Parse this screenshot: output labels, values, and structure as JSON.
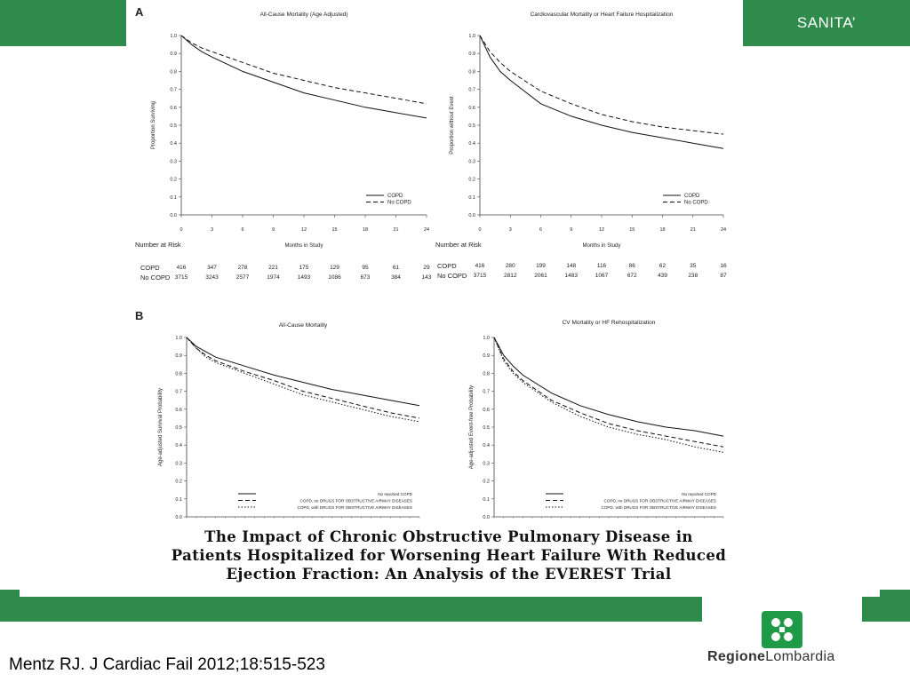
{
  "header": {
    "brand_label": "SANITA’"
  },
  "footer": {
    "citation": "Mentz RJ. J Cardiac Fail 2012;18:515-523",
    "logo_text_bold": "Regione",
    "logo_text_light": "Lombardia"
  },
  "paper_title": {
    "line1": "The Impact of Chronic Obstructive Pulmonary Disease in",
    "line2": "Patients Hospitalized for Worsening Heart Failure With Reduced",
    "line3": "Ejection Fraction: An Analysis of the EVEREST Trial"
  },
  "panels": {
    "A": "A",
    "B": "B"
  },
  "risk_table": {
    "header": "Number at Risk",
    "row_labels": [
      "COPD",
      "No COPD"
    ],
    "left": {
      "copd": [
        "416",
        "347",
        "278",
        "221",
        "175",
        "129",
        "95",
        "61",
        "29"
      ],
      "nocopd": [
        "3715",
        "3243",
        "2577",
        "1974",
        "1493",
        "1086",
        "673",
        "384",
        "143"
      ]
    },
    "right": {
      "copd": [
        "416",
        "280",
        "199",
        "148",
        "116",
        "86",
        "62",
        "35",
        "16"
      ],
      "nocopd": [
        "3715",
        "2812",
        "2061",
        "1483",
        "1067",
        "672",
        "439",
        "238",
        "87"
      ]
    }
  },
  "colors": {
    "green": "#2e8b4c",
    "line": "#111111"
  },
  "chart_data": [
    {
      "type": "line",
      "title": "All-Cause Mortality (Age Adjusted)",
      "xlabel": "Months in Study",
      "ylabel": "Proportion Surviving",
      "xlim": [
        0,
        24
      ],
      "ylim": [
        0,
        1
      ],
      "xticks": [
        "0",
        "3",
        "6",
        "9",
        "12",
        "15",
        "18",
        "21",
        "24"
      ],
      "yticks": [
        "0.0",
        "0.1",
        "0.2",
        "0.3",
        "0.4",
        "0.5",
        "0.6",
        "0.7",
        "0.8",
        "0.9",
        "1.0"
      ],
      "legend": "bottom-right",
      "x": [
        0,
        1,
        2,
        3,
        6,
        9,
        12,
        15,
        18,
        21,
        24
      ],
      "series": [
        {
          "name": "COPD",
          "dash": "solid",
          "values": [
            1.0,
            0.95,
            0.91,
            0.88,
            0.8,
            0.74,
            0.68,
            0.64,
            0.6,
            0.57,
            0.54
          ]
        },
        {
          "name": "No COPD",
          "dash": "dashed",
          "values": [
            1.0,
            0.96,
            0.93,
            0.91,
            0.85,
            0.79,
            0.75,
            0.71,
            0.68,
            0.65,
            0.62
          ]
        }
      ]
    },
    {
      "type": "line",
      "title": "Cardiovascular Mortality or Heart Failure Hospitalization",
      "xlabel": "Months in Study",
      "ylabel": "Proportion without Event",
      "xlim": [
        0,
        24
      ],
      "ylim": [
        0,
        1
      ],
      "xticks": [
        "0",
        "3",
        "6",
        "9",
        "12",
        "15",
        "18",
        "21",
        "24"
      ],
      "yticks": [
        "0.0",
        "0.1",
        "0.2",
        "0.3",
        "0.4",
        "0.5",
        "0.6",
        "0.7",
        "0.8",
        "0.9",
        "1.0"
      ],
      "legend": "bottom-right",
      "x": [
        0,
        1,
        2,
        3,
        6,
        9,
        12,
        15,
        18,
        21,
        24
      ],
      "series": [
        {
          "name": "COPD",
          "dash": "solid",
          "values": [
            1.0,
            0.88,
            0.8,
            0.75,
            0.62,
            0.55,
            0.5,
            0.46,
            0.43,
            0.4,
            0.37
          ]
        },
        {
          "name": "No COPD",
          "dash": "dashed",
          "values": [
            1.0,
            0.91,
            0.85,
            0.8,
            0.69,
            0.62,
            0.56,
            0.52,
            0.49,
            0.47,
            0.45
          ]
        }
      ]
    },
    {
      "type": "line",
      "title": "All-Cause Mortality",
      "xlabel": "",
      "ylabel": "Age-adjusted Survival Probability",
      "xlim": [
        0,
        24
      ],
      "ylim": [
        0,
        1
      ],
      "yticks": [
        "0.0",
        "0.1",
        "0.2",
        "0.3",
        "0.4",
        "0.5",
        "0.6",
        "0.7",
        "0.8",
        "0.9",
        "1.0"
      ],
      "legend": "bottom-right",
      "x": [
        0,
        1,
        2,
        3,
        6,
        9,
        12,
        15,
        18,
        21,
        24
      ],
      "series": [
        {
          "name": "No reported COPD",
          "dash": "solid",
          "values": [
            1.0,
            0.95,
            0.92,
            0.89,
            0.84,
            0.79,
            0.75,
            0.71,
            0.68,
            0.65,
            0.62
          ]
        },
        {
          "name": "COPD, no DRUGS FOR OBSTRUCTIVE AIRWAY DISEASES",
          "dash": "dashed",
          "values": [
            1.0,
            0.94,
            0.9,
            0.87,
            0.81,
            0.76,
            0.7,
            0.66,
            0.62,
            0.58,
            0.55
          ]
        },
        {
          "name": "COPD, with DRUGS FOR OBSTRUCTIVE AIRWAY DISEASES",
          "dash": "dotted",
          "values": [
            1.0,
            0.94,
            0.89,
            0.86,
            0.8,
            0.74,
            0.68,
            0.64,
            0.6,
            0.56,
            0.53
          ]
        }
      ]
    },
    {
      "type": "line",
      "title": "CV Mortality or HF Rehospitalization",
      "xlabel": "",
      "ylabel": "Age-adjusted Event-free Probability",
      "xlim": [
        0,
        24
      ],
      "ylim": [
        0,
        1
      ],
      "yticks": [
        "0.0",
        "0.1",
        "0.2",
        "0.3",
        "0.4",
        "0.5",
        "0.6",
        "0.7",
        "0.8",
        "0.9",
        "1.0"
      ],
      "legend": "bottom-right",
      "x": [
        0,
        1,
        2,
        3,
        6,
        9,
        12,
        15,
        18,
        21,
        24
      ],
      "series": [
        {
          "name": "No reported COPD",
          "dash": "solid",
          "values": [
            1.0,
            0.9,
            0.84,
            0.79,
            0.69,
            0.62,
            0.57,
            0.53,
            0.5,
            0.48,
            0.45
          ]
        },
        {
          "name": "COPD, no DRUGS FOR OBSTRUCTIVE AIRWAY DISEASES",
          "dash": "dashed",
          "values": [
            1.0,
            0.88,
            0.81,
            0.76,
            0.65,
            0.58,
            0.52,
            0.48,
            0.45,
            0.42,
            0.39
          ]
        },
        {
          "name": "COPD, with DRUGS FOR OBSTRUCTIVE AIRWAY DISEASES",
          "dash": "dotted",
          "values": [
            1.0,
            0.87,
            0.8,
            0.75,
            0.64,
            0.56,
            0.5,
            0.46,
            0.43,
            0.39,
            0.36
          ]
        }
      ]
    }
  ]
}
